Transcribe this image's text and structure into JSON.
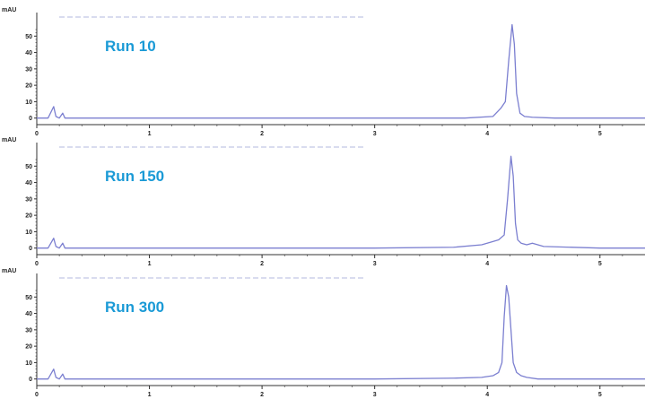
{
  "colors": {
    "trace": "#7b7fd0",
    "run_label": "#1a9ad6",
    "axis": "#333333",
    "baseline_noise": "#d9dcef"
  },
  "chart_data": [
    {
      "type": "line",
      "annotation": "Run 10",
      "ylabel": "mAU",
      "xlabel": "",
      "xlim": [
        0,
        5.4
      ],
      "ylim": [
        -4,
        60
      ],
      "x_ticks": [
        "0",
        "1",
        "2",
        "3",
        "4",
        "5"
      ],
      "y_ticks": [
        "0",
        "10",
        "20",
        "30",
        "40",
        "50"
      ],
      "grid": false,
      "series": [
        {
          "x": [
            0,
            0.1,
            0.15,
            0.17,
            0.2,
            0.23,
            0.25,
            0.3,
            1,
            2,
            3,
            3.8,
            4.05,
            4.12,
            4.16,
            4.19,
            4.22,
            4.24,
            4.26,
            4.29,
            4.33,
            4.4,
            4.6,
            5,
            5.4
          ],
          "y": [
            0,
            0,
            7,
            1,
            0,
            3,
            0,
            0,
            0,
            0,
            0,
            0,
            1,
            6,
            10,
            35,
            57,
            45,
            15,
            3,
            1,
            0.5,
            0,
            0,
            0
          ]
        }
      ]
    },
    {
      "type": "line",
      "annotation": "Run 150",
      "ylabel": "mAU",
      "xlabel": "",
      "xlim": [
        0,
        5.4
      ],
      "ylim": [
        -4,
        60
      ],
      "x_ticks": [
        "0",
        "1",
        "2",
        "3",
        "4",
        "5"
      ],
      "y_ticks": [
        "0",
        "10",
        "20",
        "30",
        "40",
        "50"
      ],
      "grid": false,
      "series": [
        {
          "x": [
            0,
            0.1,
            0.15,
            0.17,
            0.2,
            0.23,
            0.25,
            0.3,
            1,
            2,
            3,
            3.7,
            3.95,
            4.05,
            4.1,
            4.15,
            4.18,
            4.21,
            4.23,
            4.25,
            4.27,
            4.3,
            4.35,
            4.4,
            4.5,
            5,
            5.4
          ],
          "y": [
            0,
            0,
            6,
            1,
            0,
            3,
            0,
            0,
            0,
            0,
            0,
            0.5,
            2,
            4,
            5,
            8,
            30,
            56,
            44,
            15,
            5,
            3,
            2,
            3,
            1,
            0,
            0
          ]
        }
      ]
    },
    {
      "type": "line",
      "annotation": "Run 300",
      "ylabel": "mAU",
      "xlabel": "",
      "xlim": [
        0,
        5.4
      ],
      "ylim": [
        -4,
        60
      ],
      "x_ticks": [
        "0",
        "1",
        "2",
        "3",
        "4",
        "5"
      ],
      "y_ticks": [
        "0",
        "10",
        "20",
        "30",
        "40",
        "50"
      ],
      "grid": false,
      "series": [
        {
          "x": [
            0,
            0.1,
            0.15,
            0.17,
            0.2,
            0.23,
            0.25,
            0.3,
            1,
            2,
            3,
            3.7,
            3.95,
            4.05,
            4.1,
            4.13,
            4.15,
            4.17,
            4.19,
            4.21,
            4.23,
            4.26,
            4.3,
            4.35,
            4.45,
            5,
            5.4
          ],
          "y": [
            0,
            0,
            6,
            1,
            0,
            3,
            0,
            0,
            0,
            0,
            0,
            0.5,
            1,
            2,
            4,
            10,
            38,
            57,
            50,
            30,
            10,
            4,
            2,
            1,
            0,
            0,
            0
          ]
        }
      ]
    }
  ]
}
